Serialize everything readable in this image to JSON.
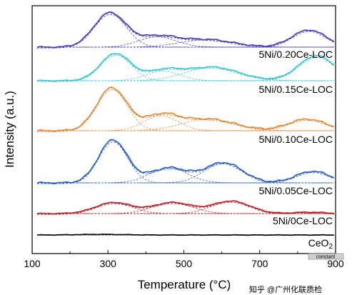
{
  "chart_data": {
    "type": "line",
    "xlabel": "Temperature (°C)",
    "ylabel": "Intensity (a.u.)",
    "xlim": [
      100,
      900
    ],
    "x_ticks": [
      100,
      300,
      500,
      700,
      900
    ],
    "x_tick_labels": [
      "100",
      "300",
      "500",
      "700",
      "900"
    ],
    "y_ticks_shown": false,
    "grid": false,
    "series": [
      {
        "name": "5Ni/0.20Ce-LOC",
        "color": "#4a3fb5",
        "peaks": [
          {
            "center": 305,
            "height": 1.0,
            "width": 42
          },
          {
            "center": 430,
            "height": 0.3,
            "width": 50
          },
          {
            "center": 560,
            "height": 0.22,
            "width": 70
          },
          {
            "center": 830,
            "height": 0.5,
            "width": 45
          }
        ]
      },
      {
        "name": "5Ni/0.15Ce-LOC",
        "color": "#3ac5d6",
        "peaks": [
          {
            "center": 320,
            "height": 1.0,
            "width": 40
          },
          {
            "center": 445,
            "height": 0.35,
            "width": 45
          },
          {
            "center": 575,
            "height": 0.5,
            "width": 70
          },
          {
            "center": 850,
            "height": 0.92,
            "width": 48
          }
        ]
      },
      {
        "name": "5Ni/0.10Ce-LOC",
        "color": "#e08a3a",
        "peaks": [
          {
            "center": 310,
            "height": 1.0,
            "width": 40
          },
          {
            "center": 440,
            "height": 0.35,
            "width": 45
          },
          {
            "center": 565,
            "height": 0.27,
            "width": 70
          },
          {
            "center": 825,
            "height": 0.27,
            "width": 50
          }
        ]
      },
      {
        "name": "5Ni/0.05Ce-LOC",
        "color": "#2e5fc0",
        "peaks": [
          {
            "center": 313,
            "height": 1.0,
            "width": 38
          },
          {
            "center": 460,
            "height": 0.35,
            "width": 50
          },
          {
            "center": 605,
            "height": 0.47,
            "width": 50
          },
          {
            "center": 840,
            "height": 0.27,
            "width": 45
          }
        ]
      },
      {
        "name": "5Ni/0Ce-LOC",
        "color": "#b5232b",
        "peaks": [
          {
            "center": 315,
            "height": 0.55,
            "width": 48
          },
          {
            "center": 470,
            "height": 0.55,
            "width": 52
          },
          {
            "center": 625,
            "height": 0.62,
            "width": 50
          },
          {
            "center": 830,
            "height": 0.07,
            "width": 40
          }
        ]
      },
      {
        "name": "CeO2",
        "color": "#000000",
        "peaks": [
          {
            "center": 280,
            "height": 0.06,
            "width": 60
          }
        ]
      }
    ]
  },
  "labels": {
    "s0": "5Ni/0.20Ce-LOC",
    "s1": "5Ni/0.15Ce-LOC",
    "s2": "5Ni/0.10Ce-LOC",
    "s3": "5Ni/0.05Ce-LOC",
    "s4": "5Ni/0Ce-LOC",
    "s5_base": "CeO",
    "s5_sub": "2"
  },
  "overlay": {
    "badge_text": "constant",
    "watermark": "知乎 @广州化联质检"
  }
}
